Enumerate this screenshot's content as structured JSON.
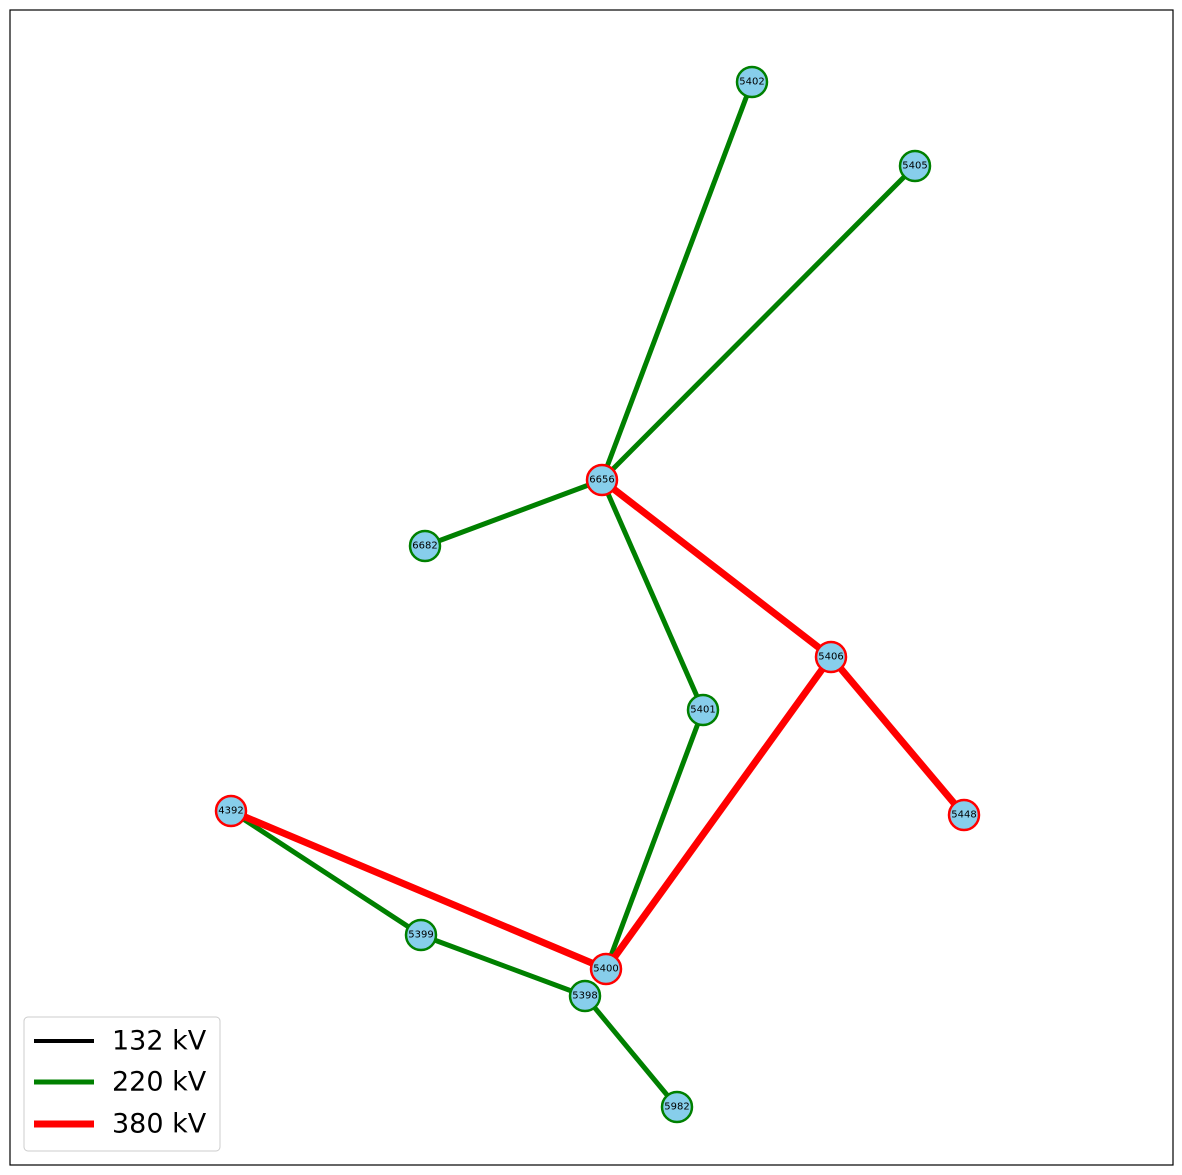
{
  "colors": {
    "node_fill": "#87ceeb",
    "v132": "#000000",
    "v220": "#008000",
    "v380": "#ff0000"
  },
  "legend": {
    "items": [
      {
        "label": "132 kV",
        "voltage": "132"
      },
      {
        "label": "220 kV",
        "voltage": "220"
      },
      {
        "label": "380 kV",
        "voltage": "380"
      }
    ]
  },
  "nodes": [
    {
      "id": "5402",
      "voltage": "220"
    },
    {
      "id": "5405",
      "voltage": "220"
    },
    {
      "id": "6656",
      "voltage": "380"
    },
    {
      "id": "6682",
      "voltage": "220"
    },
    {
      "id": "5406",
      "voltage": "380"
    },
    {
      "id": "5401",
      "voltage": "220"
    },
    {
      "id": "4392",
      "voltage": "380"
    },
    {
      "id": "5448",
      "voltage": "380"
    },
    {
      "id": "5399",
      "voltage": "220"
    },
    {
      "id": "5400",
      "voltage": "380"
    },
    {
      "id": "5398",
      "voltage": "220"
    },
    {
      "id": "5982",
      "voltage": "220"
    }
  ],
  "edges": [
    {
      "from": "6656",
      "to": "5402",
      "voltage": "220"
    },
    {
      "from": "6656",
      "to": "5405",
      "voltage": "220"
    },
    {
      "from": "6656",
      "to": "6682",
      "voltage": "220"
    },
    {
      "from": "6656",
      "to": "5401",
      "voltage": "220"
    },
    {
      "from": "5401",
      "to": "5400",
      "voltage": "220"
    },
    {
      "from": "4392",
      "to": "5399",
      "voltage": "220"
    },
    {
      "from": "5399",
      "to": "5398",
      "voltage": "220"
    },
    {
      "from": "5398",
      "to": "5982",
      "voltage": "220"
    },
    {
      "from": "6656",
      "to": "5406",
      "voltage": "380"
    },
    {
      "from": "5406",
      "to": "5448",
      "voltage": "380"
    },
    {
      "from": "5406",
      "to": "5400",
      "voltage": "380"
    },
    {
      "from": "4392",
      "to": "5400",
      "voltage": "380"
    }
  ]
}
